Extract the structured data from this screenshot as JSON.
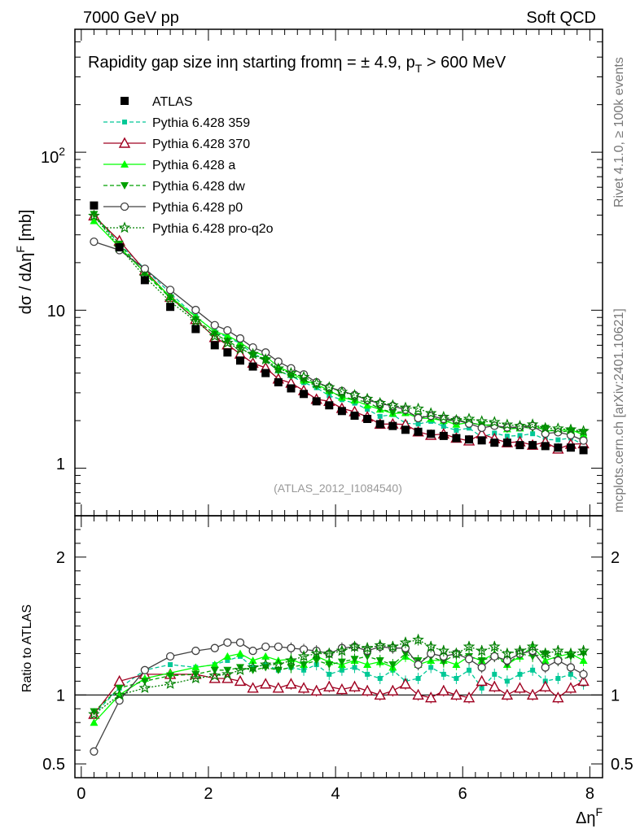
{
  "header": {
    "left": "7000 GeV pp",
    "right": "Soft QCD"
  },
  "side_labels": {
    "rivet": "Rivet 4.1.0, ≥ 100k events",
    "mcplots": "mcplots.cern.ch [arXiv:2401.10621]"
  },
  "chart_data": {
    "type": "scatter",
    "title": "Rapidity gap size in η starting from η = ± 4.9, p_T > 600 MeV",
    "title_parts": {
      "t1": "Rapidity gap size in",
      "eta1": "η",
      "t2": " starting from",
      "eta2": "η",
      "t3": " = ± 4.9, p",
      "sub": "T",
      "t4": " > 600 MeV"
    },
    "analysis_id": "(ATLAS_2012_I1084540)",
    "ylabel": "dσ / dΔη^F [mb]",
    "ylabel_parts": {
      "main": "dσ / dΔη",
      "sup": "F",
      "tail": " [mb]"
    },
    "xlabel": "Δη^F",
    "xlabel_parts": {
      "main": "Δη",
      "sup": "F"
    },
    "ratio_ylabel": "Ratio to ATLAS",
    "main_yscale": "log",
    "main_ylim": [
      0.5,
      600
    ],
    "ratio_ylim": [
      0.4,
      2.3
    ],
    "xlim": [
      -0.1,
      8.2
    ],
    "x_ticks": [
      "0",
      "2",
      "4",
      "6",
      "8"
    ],
    "main_y_ticks": {
      "t1": "1",
      "t10": "10",
      "t100_base": "10",
      "t100_exp": "2"
    },
    "ratio_y_ticks": [
      "0.5",
      "1",
      "2"
    ],
    "x": [
      0.2,
      0.6,
      1.0,
      1.4,
      1.8,
      2.1,
      2.3,
      2.5,
      2.7,
      2.9,
      3.1,
      3.3,
      3.5,
      3.7,
      3.9,
      4.1,
      4.3,
      4.5,
      4.7,
      4.9,
      5.1,
      5.3,
      5.5,
      5.7,
      5.9,
      6.1,
      6.3,
      6.5,
      6.7,
      6.9,
      7.1,
      7.3,
      7.5,
      7.7,
      7.9
    ],
    "data": {
      "name": "ATLAS",
      "values": [
        46,
        25,
        15.5,
        10.5,
        7.6,
        6.0,
        5.4,
        4.8,
        4.4,
        4.0,
        3.5,
        3.2,
        2.95,
        2.65,
        2.5,
        2.3,
        2.15,
        2.05,
        1.9,
        1.85,
        1.75,
        1.7,
        1.65,
        1.6,
        1.55,
        1.52,
        1.5,
        1.45,
        1.45,
        1.4,
        1.4,
        1.38,
        1.35,
        1.35,
        1.3
      ]
    },
    "series": [
      {
        "name": "Pythia 6.428 359",
        "color": "#00c896",
        "marker": "square-small",
        "line": "dashed",
        "ratio": [
          0.86,
          1.05,
          1.18,
          1.22,
          1.2,
          1.22,
          1.25,
          1.28,
          1.2,
          1.22,
          1.18,
          1.2,
          1.18,
          1.22,
          1.15,
          1.18,
          1.2,
          1.15,
          1.12,
          1.18,
          1.1,
          1.12,
          1.2,
          1.15,
          1.12,
          1.18,
          1.05,
          1.15,
          1.1,
          1.15,
          1.18,
          1.1,
          1.12,
          1.15,
          1.08
        ]
      },
      {
        "name": "Pythia 6.428 370",
        "color": "#a00020",
        "marker": "triangle-open",
        "line": "solid",
        "ratio": [
          0.86,
          1.1,
          1.15,
          1.15,
          1.15,
          1.12,
          1.12,
          1.1,
          1.05,
          1.08,
          1.05,
          1.08,
          1.05,
          1.03,
          1.06,
          1.04,
          1.06,
          1.03,
          1.0,
          1.03,
          1.08,
          1.0,
          0.98,
          1.03,
          1.0,
          0.98,
          1.1,
          1.06,
          1.0,
          1.05,
          1.0,
          1.06,
          0.98,
          1.05,
          1.1
        ]
      },
      {
        "name": "Pythia 6.428 a",
        "color": "#00ff00",
        "marker": "triangle-filled",
        "line": "solid",
        "ratio": [
          0.8,
          1.0,
          1.12,
          1.16,
          1.2,
          1.22,
          1.28,
          1.3,
          1.25,
          1.28,
          1.25,
          1.26,
          1.22,
          1.28,
          1.24,
          1.22,
          1.25,
          1.22,
          1.24,
          1.2,
          1.28,
          1.22,
          1.25,
          1.25,
          1.22,
          1.28,
          1.25,
          1.3,
          1.22,
          1.28,
          1.35,
          1.25,
          1.28,
          1.3,
          1.25
        ]
      },
      {
        "name": "Pythia 6.428 dw",
        "color": "#00a000",
        "marker": "triangle-down",
        "line": "dashed",
        "ratio": [
          0.88,
          1.05,
          1.1,
          1.14,
          1.15,
          1.18,
          1.18,
          1.2,
          1.18,
          1.2,
          1.18,
          1.2,
          1.22,
          1.25,
          1.22,
          1.24,
          1.26,
          1.28,
          1.25,
          1.22,
          1.3,
          1.25,
          1.28,
          1.24,
          1.3,
          1.28,
          1.25,
          1.28,
          1.22,
          1.3,
          1.28,
          1.3,
          1.25,
          1.28,
          1.3
        ]
      },
      {
        "name": "Pythia 6.428 p0",
        "color": "#404040",
        "marker": "circle-open",
        "line": "solid",
        "ratio": [
          0.59,
          0.96,
          1.18,
          1.28,
          1.32,
          1.34,
          1.38,
          1.38,
          1.32,
          1.35,
          1.35,
          1.34,
          1.33,
          1.32,
          1.3,
          1.34,
          1.35,
          1.32,
          1.35,
          1.34,
          1.34,
          1.22,
          1.3,
          1.28,
          1.3,
          1.26,
          1.2,
          1.28,
          1.25,
          1.3,
          1.32,
          1.2,
          1.25,
          1.2,
          1.15
        ]
      },
      {
        "name": "Pythia 6.428 pro-q2o",
        "color": "#008000",
        "marker": "star",
        "line": "dotted",
        "ratio": [
          0.86,
          1.0,
          1.05,
          1.08,
          1.12,
          1.14,
          1.15,
          1.18,
          1.2,
          1.22,
          1.22,
          1.25,
          1.28,
          1.3,
          1.3,
          1.32,
          1.35,
          1.34,
          1.36,
          1.35,
          1.38,
          1.4,
          1.35,
          1.32,
          1.3,
          1.35,
          1.32,
          1.35,
          1.3,
          1.32,
          1.35,
          1.3,
          1.32,
          1.3,
          1.32
        ]
      }
    ],
    "legend_position": "top-left"
  }
}
